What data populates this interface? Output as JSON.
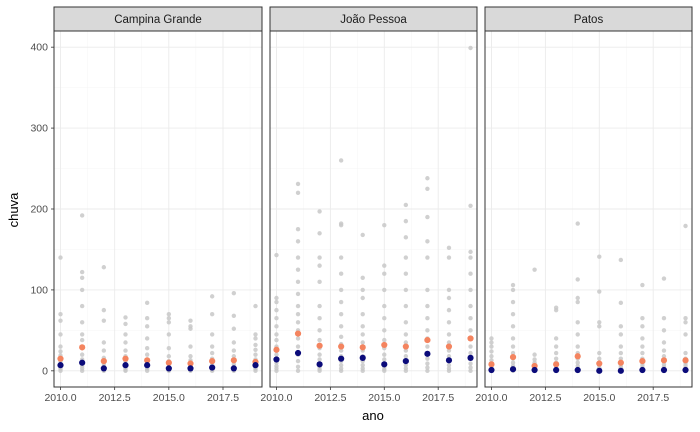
{
  "chart_data": {
    "type": "scatter",
    "xlabel": "ano",
    "ylabel": "chuva",
    "xlim": [
      2009.7,
      2019.3
    ],
    "ylim": [
      -20,
      420
    ],
    "x_ticks": [
      2010,
      2012.5,
      2015,
      2017.5
    ],
    "x_tick_labels": [
      "2010.0",
      "2012.5",
      "2015.0",
      "2017.5"
    ],
    "y_ticks": [
      0,
      100,
      200,
      300,
      400
    ],
    "y_tick_labels": [
      "0",
      "100",
      "200",
      "300",
      "400"
    ],
    "grid": true,
    "legend": "none",
    "colors": {
      "raw": "#c8c8c8",
      "mean": "#f4845f",
      "median": "#0b0b7a"
    },
    "panels": [
      {
        "title": "Campina Grande",
        "raw": [
          {
            "x": 2010,
            "y": [
              0,
              2,
              4,
              6,
              9,
              12,
              15,
              19,
              24,
              30,
              45,
              62,
              70,
              140
            ]
          },
          {
            "x": 2011,
            "y": [
              0,
              3,
              6,
              10,
              14,
              20,
              28,
              38,
              45,
              60,
              80,
              100,
              115,
              122,
              192
            ]
          },
          {
            "x": 2012,
            "y": [
              0,
              1,
              2,
              4,
              6,
              9,
              12,
              16,
              25,
              35,
              62,
              75,
              128
            ]
          },
          {
            "x": 2013,
            "y": [
              0,
              1,
              3,
              5,
              8,
              12,
              18,
              25,
              35,
              45,
              58,
              66
            ]
          },
          {
            "x": 2014,
            "y": [
              0,
              2,
              4,
              7,
              10,
              14,
              20,
              28,
              40,
              55,
              65,
              84
            ]
          },
          {
            "x": 2015,
            "y": [
              0,
              1,
              2,
              3,
              5,
              8,
              12,
              18,
              28,
              45,
              60,
              65,
              70
            ]
          },
          {
            "x": 2016,
            "y": [
              0,
              1,
              2,
              4,
              6,
              9,
              13,
              18,
              30,
              52,
              55,
              62
            ]
          },
          {
            "x": 2017,
            "y": [
              0,
              1,
              2,
              4,
              7,
              10,
              15,
              22,
              30,
              45,
              70,
              92
            ]
          },
          {
            "x": 2018,
            "y": [
              0,
              1,
              3,
              5,
              8,
              12,
              18,
              25,
              35,
              52,
              68,
              96
            ]
          },
          {
            "x": 2019,
            "y": [
              0,
              2,
              4,
              7,
              10,
              14,
              20,
              26,
              32,
              40,
              45,
              80
            ]
          }
        ],
        "mean": [
          15,
          29,
          12,
          15,
          13,
          10,
          9,
          12,
          13,
          11
        ],
        "median": [
          7,
          10,
          3,
          7,
          7,
          3,
          3,
          4,
          3,
          7
        ]
      },
      {
        "title": "João Pessoa",
        "raw": [
          {
            "x": 2010,
            "y": [
              0,
              3,
              6,
              10,
              15,
              20,
              25,
              30,
              38,
              45,
              55,
              65,
              75,
              85,
              90,
              143
            ]
          },
          {
            "x": 2011,
            "y": [
              0,
              5,
              12,
              20,
              30,
              40,
              50,
              60,
              70,
              80,
              95,
              110,
              125,
              140,
              160,
              175,
              220,
              231
            ]
          },
          {
            "x": 2012,
            "y": [
              0,
              2,
              5,
              9,
              14,
              20,
              28,
              38,
              50,
              65,
              80,
              110,
              130,
              140,
              170,
              197
            ]
          },
          {
            "x": 2013,
            "y": [
              0,
              3,
              7,
              12,
              18,
              25,
              33,
              42,
              55,
              70,
              85,
              100,
              120,
              140,
              180,
              182,
              260
            ]
          },
          {
            "x": 2014,
            "y": [
              0,
              3,
              7,
              12,
              18,
              25,
              35,
              45,
              55,
              70,
              90,
              100,
              115,
              168
            ]
          },
          {
            "x": 2015,
            "y": [
              0,
              2,
              5,
              9,
              14,
              20,
              28,
              38,
              50,
              65,
              80,
              100,
              120,
              130,
              180
            ]
          },
          {
            "x": 2016,
            "y": [
              0,
              3,
              7,
              12,
              18,
              25,
              35,
              45,
              60,
              80,
              100,
              120,
              140,
              165,
              185,
              205
            ]
          },
          {
            "x": 2017,
            "y": [
              0,
              4,
              9,
              15,
              22,
              30,
              40,
              50,
              65,
              80,
              100,
              140,
              160,
              190,
              225,
              238
            ]
          },
          {
            "x": 2018,
            "y": [
              0,
              3,
              7,
              12,
              18,
              25,
              35,
              45,
              60,
              75,
              90,
              100,
              140,
              152
            ]
          },
          {
            "x": 2019,
            "y": [
              0,
              4,
              9,
              15,
              22,
              30,
              40,
              50,
              65,
              80,
              100,
              120,
              140,
              147,
              204,
              399
            ]
          }
        ],
        "mean": [
          26,
          46,
          31,
          30,
          29,
          32,
          30,
          38,
          30,
          40
        ],
        "median": [
          14,
          22,
          8,
          15,
          16,
          8,
          12,
          21,
          13,
          16
        ]
      },
      {
        "title": "Patos",
        "raw": [
          {
            "x": 2010,
            "y": [
              0,
              1,
              2,
              4,
              6,
              9,
              13,
              18,
              24,
              30,
              35,
              40
            ]
          },
          {
            "x": 2011,
            "y": [
              0,
              1,
              3,
              6,
              10,
              15,
              22,
              30,
              40,
              55,
              70,
              85,
              100,
              106
            ]
          },
          {
            "x": 2012,
            "y": [
              0,
              1,
              2,
              4,
              6,
              10,
              14,
              20,
              125
            ]
          },
          {
            "x": 2013,
            "y": [
              0,
              1,
              2,
              4,
              7,
              10,
              15,
              22,
              30,
              40,
              75,
              78
            ]
          },
          {
            "x": 2014,
            "y": [
              0,
              1,
              3,
              6,
              10,
              15,
              22,
              30,
              45,
              60,
              85,
              90,
              113,
              182
            ]
          },
          {
            "x": 2015,
            "y": [
              0,
              1,
              2,
              4,
              7,
              10,
              15,
              22,
              55,
              60,
              98,
              141
            ]
          },
          {
            "x": 2016,
            "y": [
              0,
              1,
              2,
              4,
              6,
              10,
              15,
              22,
              30,
              45,
              55,
              84,
              137
            ]
          },
          {
            "x": 2017,
            "y": [
              0,
              1,
              2,
              4,
              7,
              10,
              15,
              22,
              30,
              40,
              55,
              65,
              106
            ]
          },
          {
            "x": 2018,
            "y": [
              0,
              1,
              3,
              5,
              8,
              12,
              18,
              25,
              35,
              50,
              65,
              114
            ]
          },
          {
            "x": 2019,
            "y": [
              0,
              1,
              2,
              4,
              7,
              10,
              15,
              22,
              45,
              60,
              65,
              179
            ]
          }
        ],
        "mean": [
          8,
          17,
          6,
          8,
          18,
          9,
          10,
          12,
          13,
          13
        ],
        "median": [
          1,
          2,
          1,
          1,
          1,
          0,
          0,
          1,
          1,
          1
        ]
      }
    ]
  }
}
